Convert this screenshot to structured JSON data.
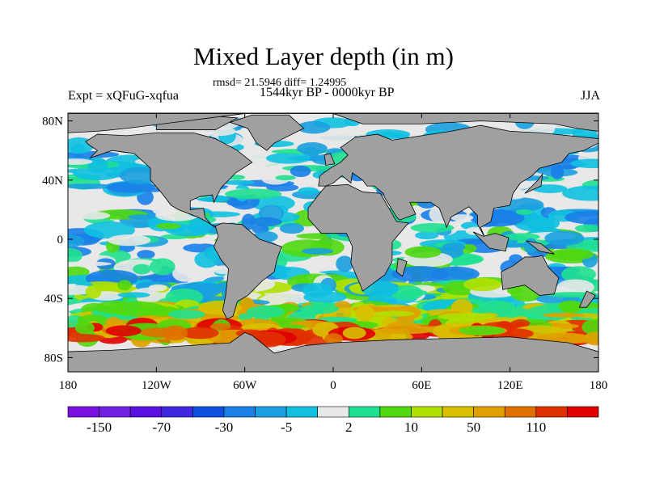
{
  "title": "Mixed Layer depth (in m)",
  "stats": "rmsd= 21.5946 diff= 1.24995",
  "period": "1544kyr BP - 0000kyr BP",
  "experiment": "Expt = xQFuG-xqfua",
  "season": "JJA",
  "axes": {
    "y_ticks": [
      {
        "lat": 80,
        "label": "80N"
      },
      {
        "lat": 40,
        "label": "40N"
      },
      {
        "lat": 0,
        "label": "0"
      },
      {
        "lat": -40,
        "label": "40S"
      },
      {
        "lat": -80,
        "label": "80S"
      }
    ],
    "x_ticks": [
      {
        "lon": -180,
        "label": "180"
      },
      {
        "lon": -120,
        "label": "120W"
      },
      {
        "lon": -60,
        "label": "60W"
      },
      {
        "lon": 0,
        "label": "0"
      },
      {
        "lon": 60,
        "label": "60E"
      },
      {
        "lon": 120,
        "label": "120E"
      },
      {
        "lon": 180,
        "label": "180"
      }
    ]
  },
  "colorbar": {
    "colors": [
      "#7a10e0",
      "#7020e0",
      "#5a10e0",
      "#4028e0",
      "#1050e0",
      "#1a80e8",
      "#1aa0e0",
      "#10c0e0",
      "#e8e8e8",
      "#20e090",
      "#50d810",
      "#b0e000",
      "#d8c000",
      "#e0a000",
      "#e07000",
      "#e03000",
      "#e00000"
    ],
    "labels": [
      "-150",
      "-70",
      "-30",
      "-5",
      "2",
      "10",
      "50",
      "110"
    ]
  },
  "land_color": "#a0a0a0"
}
